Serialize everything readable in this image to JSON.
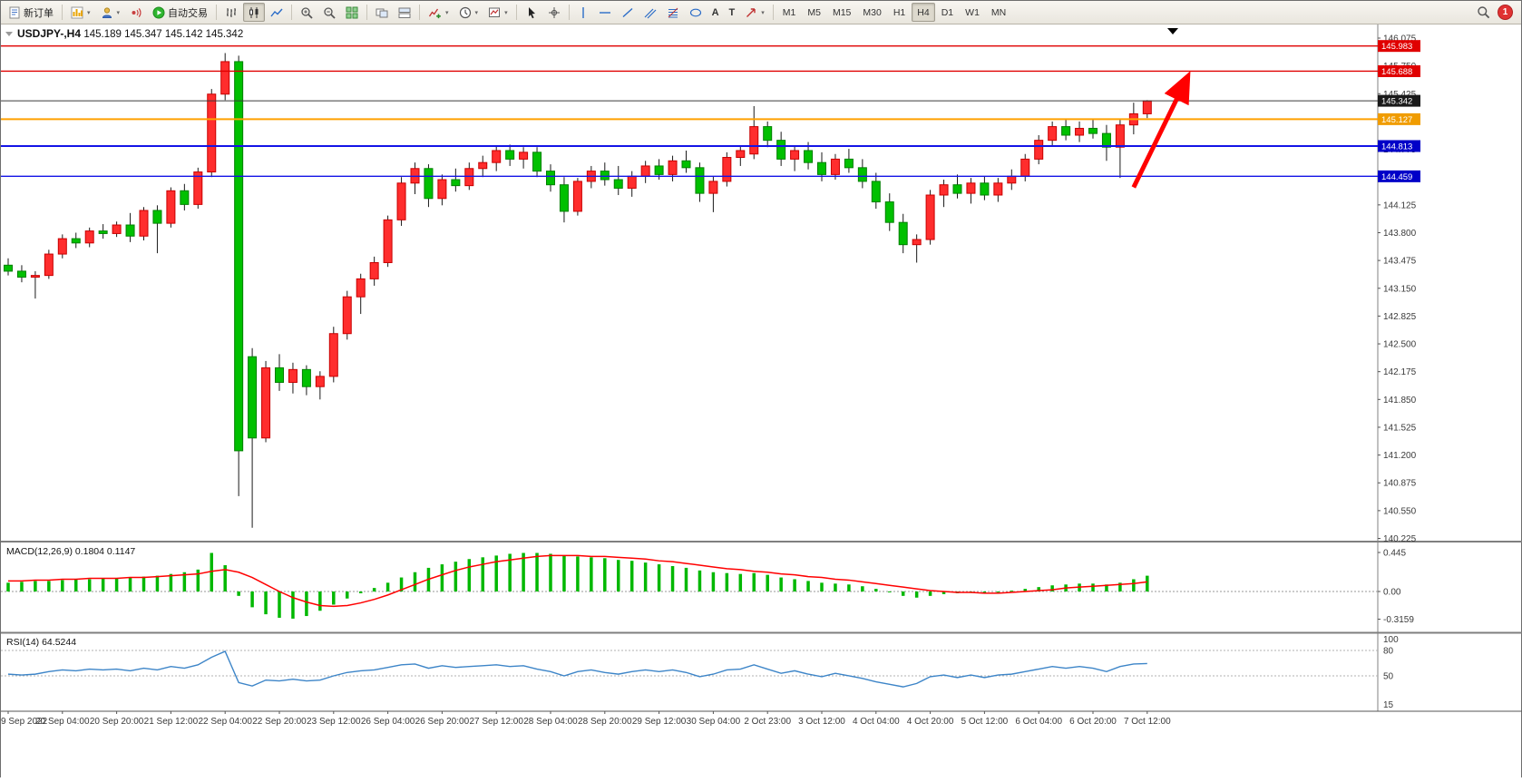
{
  "toolbar": {
    "new_order": "新订单",
    "auto_trading": "自动交易",
    "timeframes": [
      "M1",
      "M5",
      "M15",
      "M30",
      "H1",
      "H4",
      "D1",
      "W1",
      "MN"
    ],
    "active_timeframe": "H4",
    "text_tool": "A",
    "label_tool": "T",
    "notification_count": "1"
  },
  "chart_data": {
    "type": "candlestick",
    "symbol_title": "USDJPY-,H4",
    "ohlc_display": "145.189 145.347 145.142 145.342",
    "colors": {
      "up": "#ff2d2d",
      "up_border": "#c80000",
      "down": "#00c000",
      "down_border": "#008000",
      "wick": "#1a1a1a",
      "macd_hist": "#00b800",
      "macd_signal": "#ff0000",
      "rsi_line": "#3d85c8"
    },
    "price_axis": [
      "146.075",
      "145.750",
      "145.425",
      "145.100",
      "144.775",
      "144.450",
      "144.125",
      "143.800",
      "143.475",
      "143.150",
      "142.825",
      "142.500",
      "142.175",
      "141.850",
      "141.525",
      "141.200",
      "140.875",
      "140.550",
      "140.225"
    ],
    "hlines": [
      {
        "price": 145.983,
        "label": "145.983",
        "color": "#e00000",
        "badge": "#e00000",
        "width": 1.4
      },
      {
        "price": 145.688,
        "label": "145.688",
        "color": "#e00000",
        "badge": "#e00000",
        "width": 1.4
      },
      {
        "price": 145.342,
        "label": "145.342",
        "color": "#3a3a3a",
        "badge": "#1a1a1a",
        "width": 1
      },
      {
        "price": 145.127,
        "label": "145.127",
        "color": "#ffa000",
        "badge": "#f09c00",
        "width": 2
      },
      {
        "price": 144.813,
        "label": "144.813",
        "color": "#1414e6",
        "badge": "#0000c8",
        "width": 2
      },
      {
        "price": 144.459,
        "label": "144.459",
        "color": "#1414e6",
        "badge": "#0000c8",
        "width": 1.4
      }
    ],
    "x_labels": [
      "9 Sep 2022",
      "20 Sep 04:00",
      "20 Sep 20:00",
      "21 Sep 12:00",
      "22 Sep 04:00",
      "22 Sep 20:00",
      "23 Sep 12:00",
      "26 Sep 04:00",
      "26 Sep 20:00",
      "27 Sep 12:00",
      "28 Sep 04:00",
      "28 Sep 20:00",
      "29 Sep 12:00",
      "30 Sep 04:00",
      "2 Oct 23:00",
      "3 Oct 12:00",
      "4 Oct 04:00",
      "4 Oct 20:00",
      "5 Oct 12:00",
      "6 Oct 04:00",
      "6 Oct 20:00",
      "7 Oct 12:00"
    ],
    "candles": [
      [
        143.42,
        143.5,
        143.3,
        143.35
      ],
      [
        143.35,
        143.42,
        143.22,
        143.28
      ],
      [
        143.28,
        143.35,
        143.03,
        143.3
      ],
      [
        143.3,
        143.6,
        143.26,
        143.55
      ],
      [
        143.55,
        143.78,
        143.5,
        143.73
      ],
      [
        143.73,
        143.8,
        143.62,
        143.68
      ],
      [
        143.68,
        143.86,
        143.63,
        143.82
      ],
      [
        143.82,
        143.9,
        143.73,
        143.79
      ],
      [
        143.79,
        143.93,
        143.75,
        143.89
      ],
      [
        143.89,
        144.03,
        143.69,
        143.76
      ],
      [
        143.76,
        144.1,
        143.71,
        144.06
      ],
      [
        144.06,
        144.12,
        143.56,
        143.91
      ],
      [
        143.91,
        144.33,
        143.86,
        144.29
      ],
      [
        144.29,
        144.37,
        144.06,
        144.13
      ],
      [
        144.13,
        144.56,
        144.08,
        144.51
      ],
      [
        144.51,
        145.48,
        144.45,
        145.42
      ],
      [
        145.42,
        145.9,
        145.35,
        145.8
      ],
      [
        145.8,
        145.87,
        140.72,
        141.25
      ],
      [
        142.35,
        142.45,
        140.35,
        141.4
      ],
      [
        141.4,
        142.3,
        141.35,
        142.22
      ],
      [
        142.22,
        142.38,
        141.95,
        142.05
      ],
      [
        142.05,
        142.28,
        141.92,
        142.2
      ],
      [
        142.2,
        142.25,
        141.9,
        142.0
      ],
      [
        142.0,
        142.18,
        141.85,
        142.12
      ],
      [
        142.12,
        142.7,
        142.05,
        142.62
      ],
      [
        142.62,
        143.12,
        142.55,
        143.05
      ],
      [
        143.05,
        143.32,
        142.85,
        143.26
      ],
      [
        143.26,
        143.52,
        143.18,
        143.45
      ],
      [
        143.45,
        144.0,
        143.4,
        143.95
      ],
      [
        143.95,
        144.45,
        143.88,
        144.38
      ],
      [
        144.38,
        144.62,
        144.25,
        144.55
      ],
      [
        144.55,
        144.6,
        144.1,
        144.2
      ],
      [
        144.2,
        144.48,
        144.12,
        144.42
      ],
      [
        144.42,
        144.55,
        144.28,
        144.35
      ],
      [
        144.35,
        144.62,
        144.3,
        144.55
      ],
      [
        144.55,
        144.7,
        144.45,
        144.62
      ],
      [
        144.62,
        144.82,
        144.52,
        144.76
      ],
      [
        144.76,
        144.83,
        144.58,
        144.66
      ],
      [
        144.66,
        144.8,
        144.55,
        144.74
      ],
      [
        144.74,
        144.8,
        144.45,
        144.52
      ],
      [
        144.52,
        144.6,
        144.28,
        144.36
      ],
      [
        144.36,
        144.45,
        143.92,
        144.05
      ],
      [
        144.05,
        144.44,
        144.0,
        144.4
      ],
      [
        144.4,
        144.58,
        144.32,
        144.52
      ],
      [
        144.52,
        144.62,
        144.35,
        144.42
      ],
      [
        144.42,
        144.58,
        144.24,
        144.32
      ],
      [
        144.32,
        144.52,
        144.22,
        144.46
      ],
      [
        144.46,
        144.64,
        144.38,
        144.58
      ],
      [
        144.58,
        144.66,
        144.42,
        144.48
      ],
      [
        144.48,
        144.7,
        144.4,
        144.64
      ],
      [
        144.64,
        144.76,
        144.5,
        144.56
      ],
      [
        144.56,
        144.62,
        144.16,
        144.26
      ],
      [
        144.26,
        144.46,
        144.04,
        144.4
      ],
      [
        144.4,
        144.74,
        144.34,
        144.68
      ],
      [
        144.68,
        144.82,
        144.58,
        144.76
      ],
      [
        144.72,
        145.28,
        144.66,
        145.04
      ],
      [
        145.04,
        145.1,
        144.8,
        144.88
      ],
      [
        144.88,
        144.98,
        144.58,
        144.66
      ],
      [
        144.66,
        144.82,
        144.52,
        144.76
      ],
      [
        144.76,
        144.86,
        144.54,
        144.62
      ],
      [
        144.62,
        144.74,
        144.4,
        144.48
      ],
      [
        144.48,
        144.72,
        144.42,
        144.66
      ],
      [
        144.66,
        144.78,
        144.5,
        144.56
      ],
      [
        144.56,
        144.66,
        144.32,
        144.4
      ],
      [
        144.4,
        144.5,
        144.08,
        144.16
      ],
      [
        144.16,
        144.26,
        143.82,
        143.92
      ],
      [
        143.92,
        144.02,
        143.56,
        143.66
      ],
      [
        143.66,
        143.78,
        143.45,
        143.72
      ],
      [
        143.72,
        144.3,
        143.66,
        144.24
      ],
      [
        144.24,
        144.42,
        144.1,
        144.36
      ],
      [
        144.36,
        144.48,
        144.2,
        144.26
      ],
      [
        144.26,
        144.44,
        144.14,
        144.38
      ],
      [
        144.38,
        144.46,
        144.18,
        144.24
      ],
      [
        144.24,
        144.44,
        144.16,
        144.38
      ],
      [
        144.38,
        144.54,
        144.3,
        144.46
      ],
      [
        144.46,
        144.72,
        144.4,
        144.66
      ],
      [
        144.66,
        144.94,
        144.6,
        144.88
      ],
      [
        144.88,
        145.1,
        144.82,
        145.04
      ],
      [
        145.04,
        145.12,
        144.88,
        144.94
      ],
      [
        144.94,
        145.1,
        144.86,
        145.02
      ],
      [
        145.02,
        145.12,
        144.9,
        144.96
      ],
      [
        144.96,
        145.06,
        144.64,
        144.8
      ],
      [
        144.8,
        145.12,
        144.44,
        145.06
      ],
      [
        145.06,
        145.32,
        144.95,
        145.19
      ],
      [
        145.19,
        145.35,
        145.14,
        145.34
      ]
    ],
    "macd": {
      "label": "MACD(12,26,9)",
      "main_value": "0.1804",
      "signal_value": "0.1147",
      "axis_labels": [
        "0.445",
        "0.00",
        "-0.3159"
      ],
      "hist": [
        0.1,
        0.11,
        0.12,
        0.12,
        0.13,
        0.14,
        0.14,
        0.15,
        0.15,
        0.16,
        0.17,
        0.18,
        0.2,
        0.22,
        0.25,
        0.44,
        0.3,
        -0.05,
        -0.18,
        -0.26,
        -0.3,
        -0.31,
        -0.28,
        -0.22,
        -0.15,
        -0.08,
        -0.02,
        0.04,
        0.1,
        0.16,
        0.22,
        0.27,
        0.31,
        0.34,
        0.37,
        0.39,
        0.41,
        0.43,
        0.44,
        0.44,
        0.43,
        0.41,
        0.4,
        0.39,
        0.38,
        0.36,
        0.35,
        0.33,
        0.31,
        0.29,
        0.27,
        0.24,
        0.22,
        0.21,
        0.2,
        0.21,
        0.19,
        0.16,
        0.14,
        0.12,
        0.1,
        0.09,
        0.08,
        0.06,
        0.03,
        -0.01,
        -0.05,
        -0.07,
        -0.05,
        -0.03,
        -0.02,
        -0.01,
        -0.02,
        -0.01,
        0.01,
        0.03,
        0.05,
        0.07,
        0.08,
        0.09,
        0.09,
        0.08,
        0.1,
        0.14,
        0.18
      ],
      "signal": [
        0.12,
        0.12,
        0.13,
        0.13,
        0.14,
        0.14,
        0.15,
        0.15,
        0.15,
        0.16,
        0.16,
        0.17,
        0.18,
        0.19,
        0.2,
        0.23,
        0.25,
        0.22,
        0.16,
        0.08,
        0.0,
        -0.07,
        -0.12,
        -0.16,
        -0.17,
        -0.16,
        -0.13,
        -0.09,
        -0.04,
        0.02,
        0.08,
        0.14,
        0.19,
        0.24,
        0.28,
        0.31,
        0.34,
        0.36,
        0.38,
        0.4,
        0.41,
        0.41,
        0.41,
        0.4,
        0.4,
        0.39,
        0.38,
        0.37,
        0.35,
        0.34,
        0.32,
        0.3,
        0.28,
        0.26,
        0.25,
        0.23,
        0.22,
        0.2,
        0.19,
        0.17,
        0.16,
        0.14,
        0.13,
        0.11,
        0.09,
        0.07,
        0.05,
        0.03,
        0.01,
        0.0,
        -0.01,
        -0.01,
        -0.02,
        -0.02,
        -0.01,
        0.0,
        0.01,
        0.02,
        0.04,
        0.05,
        0.06,
        0.07,
        0.08,
        0.09,
        0.11
      ]
    },
    "rsi": {
      "label": "RSI(14)",
      "value": "64.5244",
      "axis_labels": [
        "100",
        "80",
        "50",
        "15"
      ],
      "levels": [
        80,
        50
      ],
      "values": [
        52,
        51,
        52,
        55,
        57,
        56,
        58,
        57,
        58,
        56,
        59,
        57,
        61,
        59,
        63,
        72,
        79,
        42,
        38,
        45,
        44,
        46,
        44,
        45,
        50,
        54,
        56,
        57,
        60,
        63,
        64,
        59,
        62,
        60,
        61,
        62,
        63,
        61,
        62,
        58,
        55,
        50,
        55,
        57,
        54,
        52,
        55,
        57,
        55,
        57,
        54,
        49,
        52,
        57,
        58,
        63,
        58,
        53,
        56,
        52,
        49,
        53,
        50,
        47,
        43,
        40,
        37,
        41,
        49,
        51,
        48,
        51,
        48,
        51,
        52,
        55,
        58,
        61,
        59,
        61,
        59,
        55,
        61,
        64,
        64.5
      ]
    },
    "annotation_arrow": {
      "from_bar": 83,
      "from_price": 144.33,
      "to_bar": 86.6,
      "to_price": 145.5,
      "color": "#ff0000"
    }
  }
}
